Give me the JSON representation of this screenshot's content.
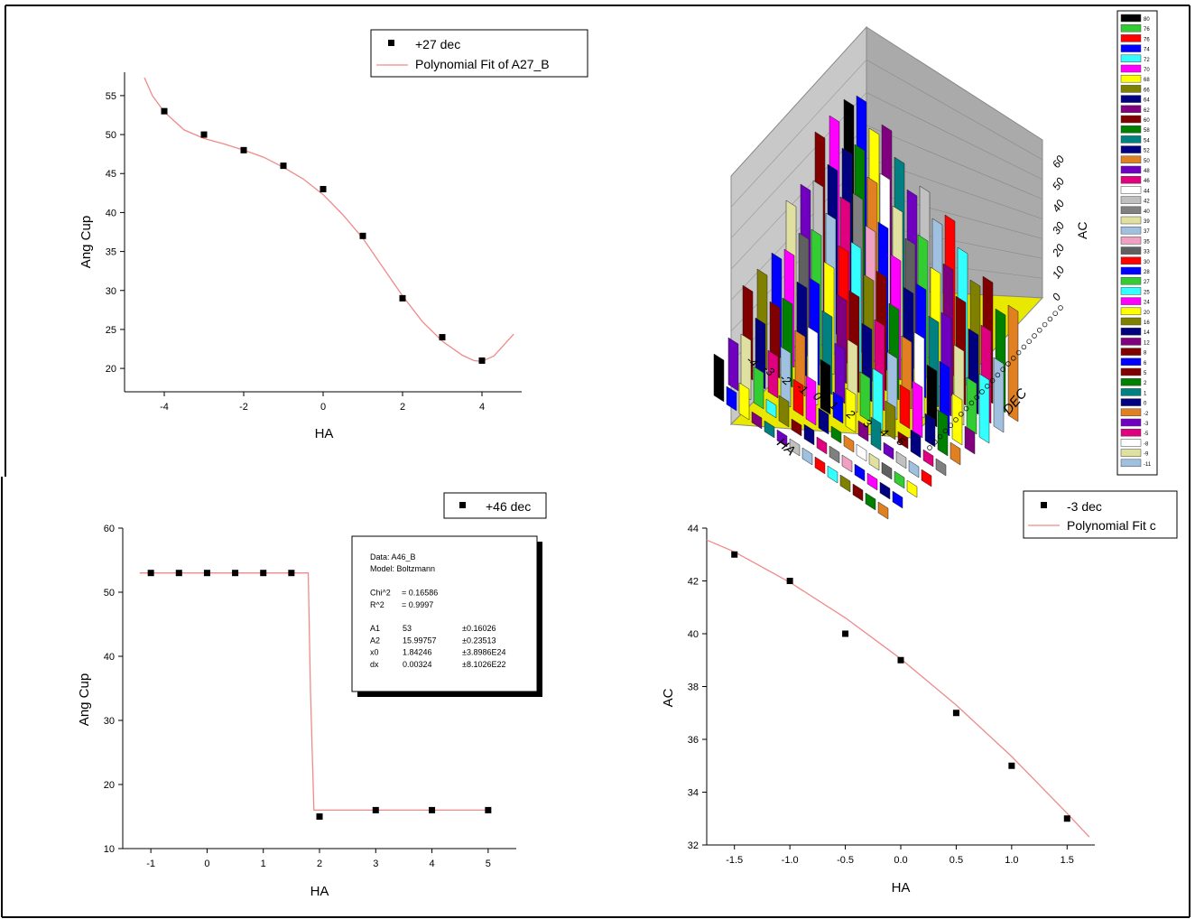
{
  "chart_data": [
    {
      "id": "tl",
      "type": "scatter",
      "xlabel": "HA",
      "ylabel": "Ang Cup",
      "xlim": [
        -5,
        5
      ],
      "ylim": [
        17,
        58
      ],
      "xticks": [
        -4,
        -2,
        0,
        2,
        4
      ],
      "yticks": [
        20,
        25,
        30,
        35,
        40,
        45,
        50,
        55
      ],
      "legend": [
        "+27 dec",
        "Polynomial Fit of A27_B"
      ],
      "series": [
        {
          "name": "+27 dec",
          "x": [
            -4,
            -3,
            -2,
            -1,
            0,
            1,
            2,
            3,
            4
          ],
          "y": [
            53,
            50,
            48,
            46,
            43,
            37,
            29,
            24,
            21
          ]
        }
      ],
      "fit": {
        "x": [
          -4.5,
          -4.3,
          -4.0,
          -3.5,
          -3.0,
          -2.5,
          -2.0,
          -1.5,
          -1.0,
          -0.5,
          0.0,
          0.5,
          1.0,
          1.5,
          2.0,
          2.5,
          3.0,
          3.5,
          3.8,
          4.0,
          4.3,
          4.8
        ],
        "y": [
          57.3,
          55.0,
          52.9,
          50.6,
          49.5,
          48.8,
          48.0,
          47.1,
          45.8,
          44.3,
          42.3,
          39.7,
          36.7,
          33.0,
          29.3,
          26.0,
          23.5,
          21.7,
          21.0,
          20.9,
          21.6,
          24.4
        ]
      },
      "color": "#f08a8a"
    },
    {
      "id": "tr",
      "type": "3d-bar",
      "xlabel": "HA",
      "ylabel": "DEC",
      "zlabel": "AC",
      "xticks": [
        "-4",
        "-3",
        "-2",
        "-1",
        "0",
        "1",
        "2",
        "3",
        "4",
        "5"
      ],
      "zticks": [
        "0",
        "10",
        "20",
        "30",
        "40",
        "50",
        "60"
      ],
      "legend": [
        "80",
        "76",
        "76",
        "74",
        "72",
        "70",
        "68",
        "66",
        "64",
        "62",
        "60",
        "58",
        "54",
        "52",
        "50",
        "48",
        "46",
        "44",
        "42",
        "40",
        "39",
        "37",
        "35",
        "33",
        "30",
        "28",
        "27",
        "25",
        "24",
        "20",
        "16",
        "14",
        "12",
        "8",
        "6",
        "5",
        "2",
        "1",
        "0",
        "-2",
        "-3",
        "-5",
        "-8",
        "-9",
        "-11"
      ],
      "legend_colors": [
        "#000000",
        "#33cc33",
        "#ff0000",
        "#0000ff",
        "#33ffff",
        "#ff00ff",
        "#ffff00",
        "#808000",
        "#000080",
        "#800080",
        "#800000",
        "#008000",
        "#008080",
        "#000080",
        "#e08020",
        "#7000c0",
        "#e0007f",
        "#ffffff",
        "#c0c0c0",
        "#808080",
        "#e0e0a0",
        "#a0c0e0",
        "#f0a0c0",
        "#606060",
        "#ff0000",
        "#0000ff",
        "#33cc33",
        "#33ffff",
        "#ff00ff",
        "#ffff00",
        "#808000",
        "#000080",
        "#800080",
        "#800000",
        "#0000ff",
        "#800000",
        "#008000",
        "#008080",
        "#000080",
        "#e08020",
        "#7000c0",
        "#e0007f",
        "#ffffff",
        "#e0e0a0",
        "#a0c0e0"
      ]
    },
    {
      "id": "bl",
      "type": "scatter",
      "xlabel": "HA",
      "ylabel": "Ang Cup",
      "xlim": [
        -1.5,
        5.5
      ],
      "ylim": [
        10,
        60
      ],
      "xticks": [
        -1,
        0,
        1,
        2,
        3,
        4,
        5
      ],
      "yticks": [
        10,
        20,
        30,
        40,
        50,
        60
      ],
      "legend": [
        "+46 dec"
      ],
      "series": [
        {
          "name": "+46 dec",
          "x": [
            -1,
            -0.5,
            0,
            0.5,
            1,
            1.5,
            2,
            3,
            4,
            5
          ],
          "y": [
            53,
            53,
            53,
            53,
            53,
            53,
            15,
            16,
            16,
            16
          ]
        }
      ],
      "fit": {
        "x": [
          -1.2,
          1.8,
          1.84,
          1.9,
          5.0
        ],
        "y": [
          53,
          53,
          34.5,
          16,
          16
        ]
      },
      "fit_box": {
        "lines": [
          [
            "Data: A46_B",
            "",
            ""
          ],
          [
            "Model: Boltzmann",
            "",
            ""
          ],
          [
            "",
            "",
            ""
          ],
          [
            "Chi^2",
            "= 0.16586",
            ""
          ],
          [
            "R^2",
            "= 0.9997",
            ""
          ],
          [
            "",
            "",
            ""
          ],
          [
            "A1",
            "53",
            "±0.16026"
          ],
          [
            "A2",
            "15.99757",
            "±0.23513"
          ],
          [
            "x0",
            "1.84246",
            "±3.8986E24"
          ],
          [
            "dx",
            "0.00324",
            "±8.1026E22"
          ]
        ]
      },
      "color": "#f08a8a"
    },
    {
      "id": "br",
      "type": "scatter",
      "xlabel": "HA",
      "ylabel": "AC",
      "xlim": [
        -1.75,
        1.75
      ],
      "ylim": [
        32,
        44
      ],
      "xticks": [
        "-1.5",
        "-1.0",
        "-0.5",
        "0.0",
        "0.5",
        "1.0",
        "1.5"
      ],
      "xtick_values": [
        -1.5,
        -1.0,
        -0.5,
        0.0,
        0.5,
        1.0,
        1.5
      ],
      "yticks": [
        32,
        34,
        36,
        38,
        40,
        42,
        44
      ],
      "legend": [
        "-3 dec",
        "Polynomial Fit c"
      ],
      "series": [
        {
          "name": "-3 dec",
          "x": [
            -1.5,
            -1.0,
            -0.5,
            0.0,
            0.5,
            1.0,
            1.5
          ],
          "y": [
            43,
            42,
            40,
            39,
            37,
            35,
            33
          ]
        }
      ],
      "fit": {
        "x": [
          -1.75,
          -1.5,
          -1.0,
          -0.5,
          0.0,
          0.5,
          1.0,
          1.5,
          1.7
        ],
        "y": [
          43.55,
          43.1,
          41.95,
          40.6,
          39.05,
          37.3,
          35.35,
          33.2,
          32.3
        ]
      },
      "color": "#f08a8a"
    }
  ]
}
